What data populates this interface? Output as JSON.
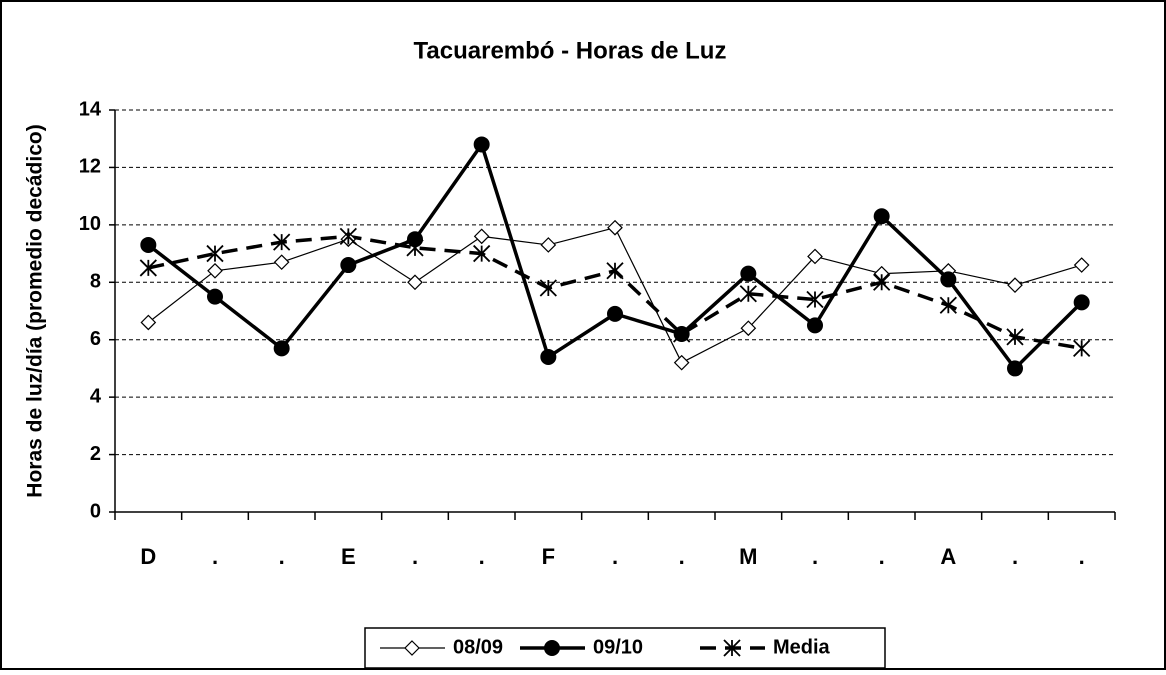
{
  "chart_data": {
    "type": "line",
    "title": "Tacuarembó - Horas de Luz",
    "y_label": "Horas de luz/día (promedio decádico)",
    "categories": [
      "D",
      ".",
      ".",
      "E",
      ".",
      ".",
      "F",
      ".",
      ".",
      "M",
      ".",
      ".",
      "A",
      ".",
      "."
    ],
    "series": [
      {
        "name": "08/09",
        "color": "#000000",
        "marker": "diamond",
        "line_style": "solid",
        "values": [
          6.6,
          8.4,
          8.7,
          9.5,
          8.0,
          9.6,
          9.3,
          9.9,
          5.2,
          6.4,
          8.9,
          8.3,
          8.4,
          7.9,
          8.6
        ]
      },
      {
        "name": "09/10",
        "color": "#000000",
        "marker": "circle",
        "line_style": "solid",
        "values": [
          9.3,
          7.5,
          5.7,
          8.6,
          9.5,
          12.8,
          5.4,
          6.9,
          6.2,
          8.3,
          6.5,
          10.3,
          8.1,
          5.0,
          7.3
        ]
      },
      {
        "name": "Media",
        "color": "#000000",
        "marker": "asterisk",
        "line_style": "dashed",
        "values": [
          8.5,
          9.0,
          9.4,
          9.6,
          9.2,
          9.0,
          7.8,
          8.4,
          6.2,
          7.6,
          7.4,
          8.0,
          7.2,
          6.1,
          5.7
        ]
      }
    ],
    "ylim": [
      0,
      14
    ],
    "yticks": [
      0,
      2,
      4,
      6,
      8,
      10,
      12,
      14
    ],
    "grid": true,
    "legend": "bottom"
  }
}
